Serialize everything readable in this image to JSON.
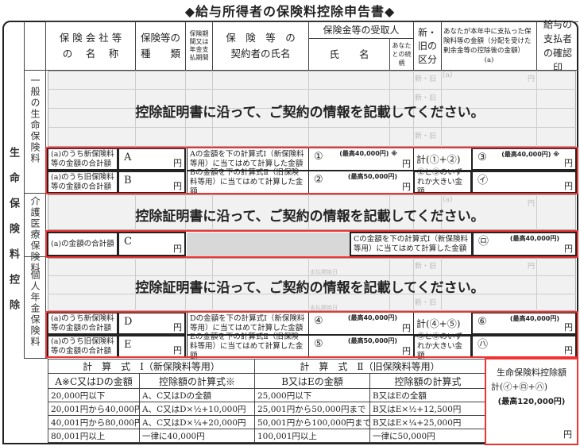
{
  "title": "◆給与所得者の保険料控除申告書◆",
  "header": {
    "company": "保険会社等の名称",
    "company1": "保 険 会 社 等",
    "company2": "の　 名　 称",
    "type1": "保険等の",
    "type2": "種　　類",
    "period": "保険期間又は年金支払期間",
    "contractor1": "保　険　等　の",
    "contractor2": "契約者の氏名",
    "recipient": "保険金等の受取人",
    "name": "氏　　名",
    "relation": "あなたとの続柄",
    "newold": "新・旧の区分",
    "amount": "あなたが本年中に支払った保険料等の金額（分配を受けた剰余金等の控除後の金額）",
    "amount_mark": "(a)",
    "confirm": "給与の支払者の確認印"
  },
  "side": {
    "main": "生命保険料控除",
    "general": "一般の生命保険料",
    "care": "介護医療保険料",
    "pension": "個人年金保険料"
  },
  "faint": {
    "newold": "新・旧",
    "a": "(a)",
    "yen": "円",
    "pay_start": "支払開始日"
  },
  "notice": "控除証明書に沿って、ご契約の情報を記載してください。",
  "general_calc": [
    {
      "label": "(a)のうち新保険料等の金額の合計額",
      "letter": "A",
      "yen": "円",
      "desc": "Aの金額を下の計算式Ⅰ（新保険料等用）に当てはめて計算した金額",
      "num": "①",
      "max": "(最高40,000円) ※",
      "sum_label": "計(①+②)",
      "res": "③",
      "res_max": "(最高40,000円) ※"
    },
    {
      "label": "(a)のうち旧保険料等の金額の合計額",
      "letter": "B",
      "yen": "円",
      "desc": "Bの金額を下の計算式Ⅱ（旧保険料等用）に当てはめて計算した金額",
      "num": "②",
      "max": "(最高50,000円)",
      "sum_label": "②と③のいずれか大きい金額",
      "res": "㋑",
      "res_max": ""
    }
  ],
  "care_calc": {
    "label": "(a)の金額の合計額",
    "letter": "C",
    "yen": "円",
    "desc": "Cの金額を下の計算式Ⅰ（新保険料等用）に当てはめて計算した金額",
    "res": "㋺",
    "res_max": "(最高40,000円)"
  },
  "pension_calc": [
    {
      "label": "(a)のうち新保険料等の金額の合計額",
      "letter": "D",
      "yen": "円",
      "desc": "Dの金額を下の計算式Ⅰ（新保険料等用）に当てはめて計算した金額",
      "num": "④",
      "max": "(最高40,000円)",
      "sum_label": "計(④+⑤)",
      "res": "⑥",
      "res_max": "(最高40,000円)"
    },
    {
      "label": "(a)のうち旧保険料等の金額の合計額",
      "letter": "E",
      "yen": "円",
      "desc": "Eの金額を下の計算式Ⅱ（旧保険料等用）に当てはめて計算した金額",
      "num": "⑤",
      "max": "(最高50,000円)",
      "sum_label": "⑤と⑥のいずれか大きい金額",
      "res": "㋩",
      "res_max": ""
    }
  ],
  "formula": {
    "title1": "計　算　式　Ⅰ（新保険料等用）",
    "title2": "計　算　式　Ⅱ（旧保険料等用）",
    "headers": [
      "A※C又はDの金額",
      "控除額の計算式※",
      "B又はEの金額",
      "控除額の計算式"
    ],
    "rows": [
      [
        "20,000円以下",
        "A、C又はDの全額",
        "25,000円以下",
        "B又はEの全額"
      ],
      [
        "20,001円から40,000円まで",
        "A、C又はD×½+10,000円",
        "25,001円から50,000円まで",
        "B又はE×½+12,500円"
      ],
      [
        "40,001円から80,000円まで",
        "A、C又はD×¼+20,000円",
        "50,001円から100,000円まで",
        "B又はE×¼+25,000円"
      ],
      [
        "80,001円以上",
        "一律に40,000円",
        "100,001円以上",
        "一律に50,000円"
      ]
    ]
  },
  "total": {
    "label1": "生命保険料控除額",
    "label2": "計(㋑+㋺+㋩)",
    "max": "(最高120,000円)",
    "yen": "円"
  },
  "colors": {
    "red_box": "#e33333",
    "gray_area": "#f1f1f1"
  }
}
